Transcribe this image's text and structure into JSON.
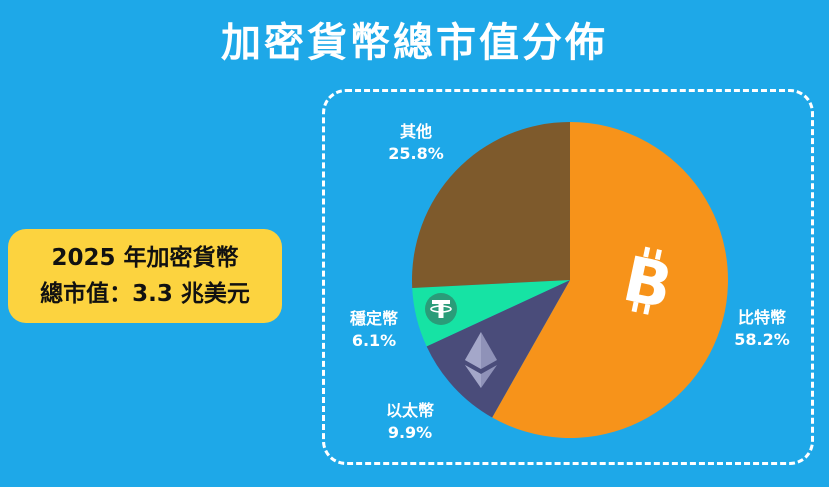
{
  "header": {
    "title": "加密貨幣總市值分佈"
  },
  "info": {
    "line1": "2025 年加密貨幣",
    "line2": "總市值：3.3 兆美元"
  },
  "chart_data": {
    "type": "pie",
    "slices": [
      {
        "label": "比特幣",
        "value": 58.2,
        "pct_text": "58.2%",
        "color": "#f7931a",
        "icon": "bitcoin-icon"
      },
      {
        "label": "以太幣",
        "value": 9.9,
        "pct_text": "9.9%",
        "color": "#4a4c7a",
        "icon": "ethereum-icon"
      },
      {
        "label": "穩定幣",
        "value": 6.1,
        "pct_text": "6.1%",
        "color": "#16e3a4",
        "icon": "tether-icon"
      },
      {
        "label": "其他",
        "value": 25.8,
        "pct_text": "25.8%",
        "color": "#7e5a2c",
        "icon": ""
      }
    ],
    "start": "12 o'clock",
    "direction": "clockwise"
  },
  "colors": {
    "background": "#1ea8e8",
    "info_box": "#fcd33f",
    "frame": "#ffffff"
  }
}
